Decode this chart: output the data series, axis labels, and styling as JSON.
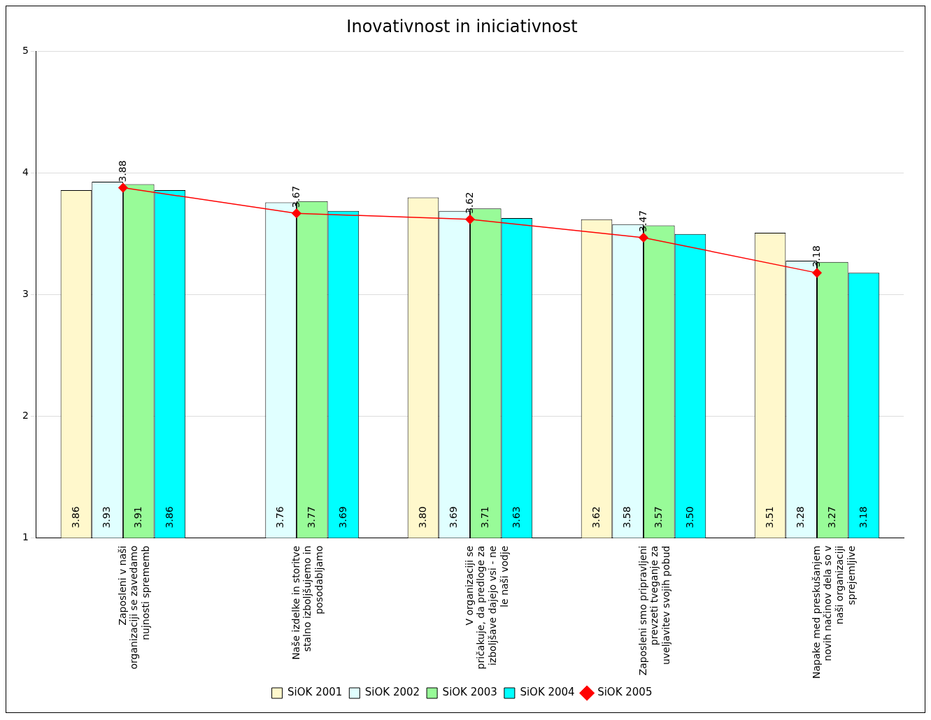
{
  "chart_data": {
    "type": "bar",
    "title": "Inovativnost in iniciativnost",
    "categories": [
      "Zaposleni v naši organizaciji se zavedamo nujnosti sprememb",
      "Naše izdelke in storitve stalno izboljšujemo in posodabljamo",
      "V organizaciji se pričakuje, da predloge za izboljšave dajejo vsi - ne le naši vodje",
      "Zaposleni smo pripravljeni prevzeti tveganje za uveljavitev svojih pobud",
      "Napake med preskušanjem novih načinov dela so v naši organizaciji sprejemljive"
    ],
    "series": [
      {
        "name": "SiOK 2001",
        "color": "#fff8cc",
        "values": [
          3.86,
          null,
          3.8,
          3.62,
          3.51
        ],
        "value_labels": [
          "3.86",
          null,
          "3.80",
          "3.62",
          "3.51"
        ]
      },
      {
        "name": "SiOK 2002",
        "color": "#e0ffff",
        "values": [
          3.93,
          3.76,
          3.69,
          3.58,
          3.28
        ],
        "value_labels": [
          "3.93",
          "3.76",
          "3.69",
          "3.58",
          "3.28"
        ]
      },
      {
        "name": "SiOK 2003",
        "color": "#98fb98",
        "values": [
          3.91,
          3.77,
          3.71,
          3.57,
          3.27
        ],
        "value_labels": [
          "3.91",
          "3.77",
          "3.71",
          "3.57",
          "3.27"
        ]
      },
      {
        "name": "SiOK 2004",
        "color": "#00ffff",
        "values": [
          3.86,
          3.69,
          3.63,
          3.5,
          3.18
        ],
        "value_labels": [
          "3.86",
          "3.69",
          "3.63",
          "3.50",
          "3.18"
        ]
      },
      {
        "name": "SiOK 2005",
        "type": "line",
        "color": "#ff0000",
        "values": [
          3.88,
          3.67,
          3.62,
          3.47,
          3.18
        ],
        "value_labels": [
          "3.88",
          "3.67",
          "3.62",
          "3.47",
          "3.18"
        ],
        "marker": "diamond",
        "line_style": "solid"
      }
    ],
    "ylim": [
      1,
      5
    ],
    "yticks": [
      1,
      2,
      3,
      4,
      5
    ],
    "grid": "y",
    "legend": "bottom"
  }
}
